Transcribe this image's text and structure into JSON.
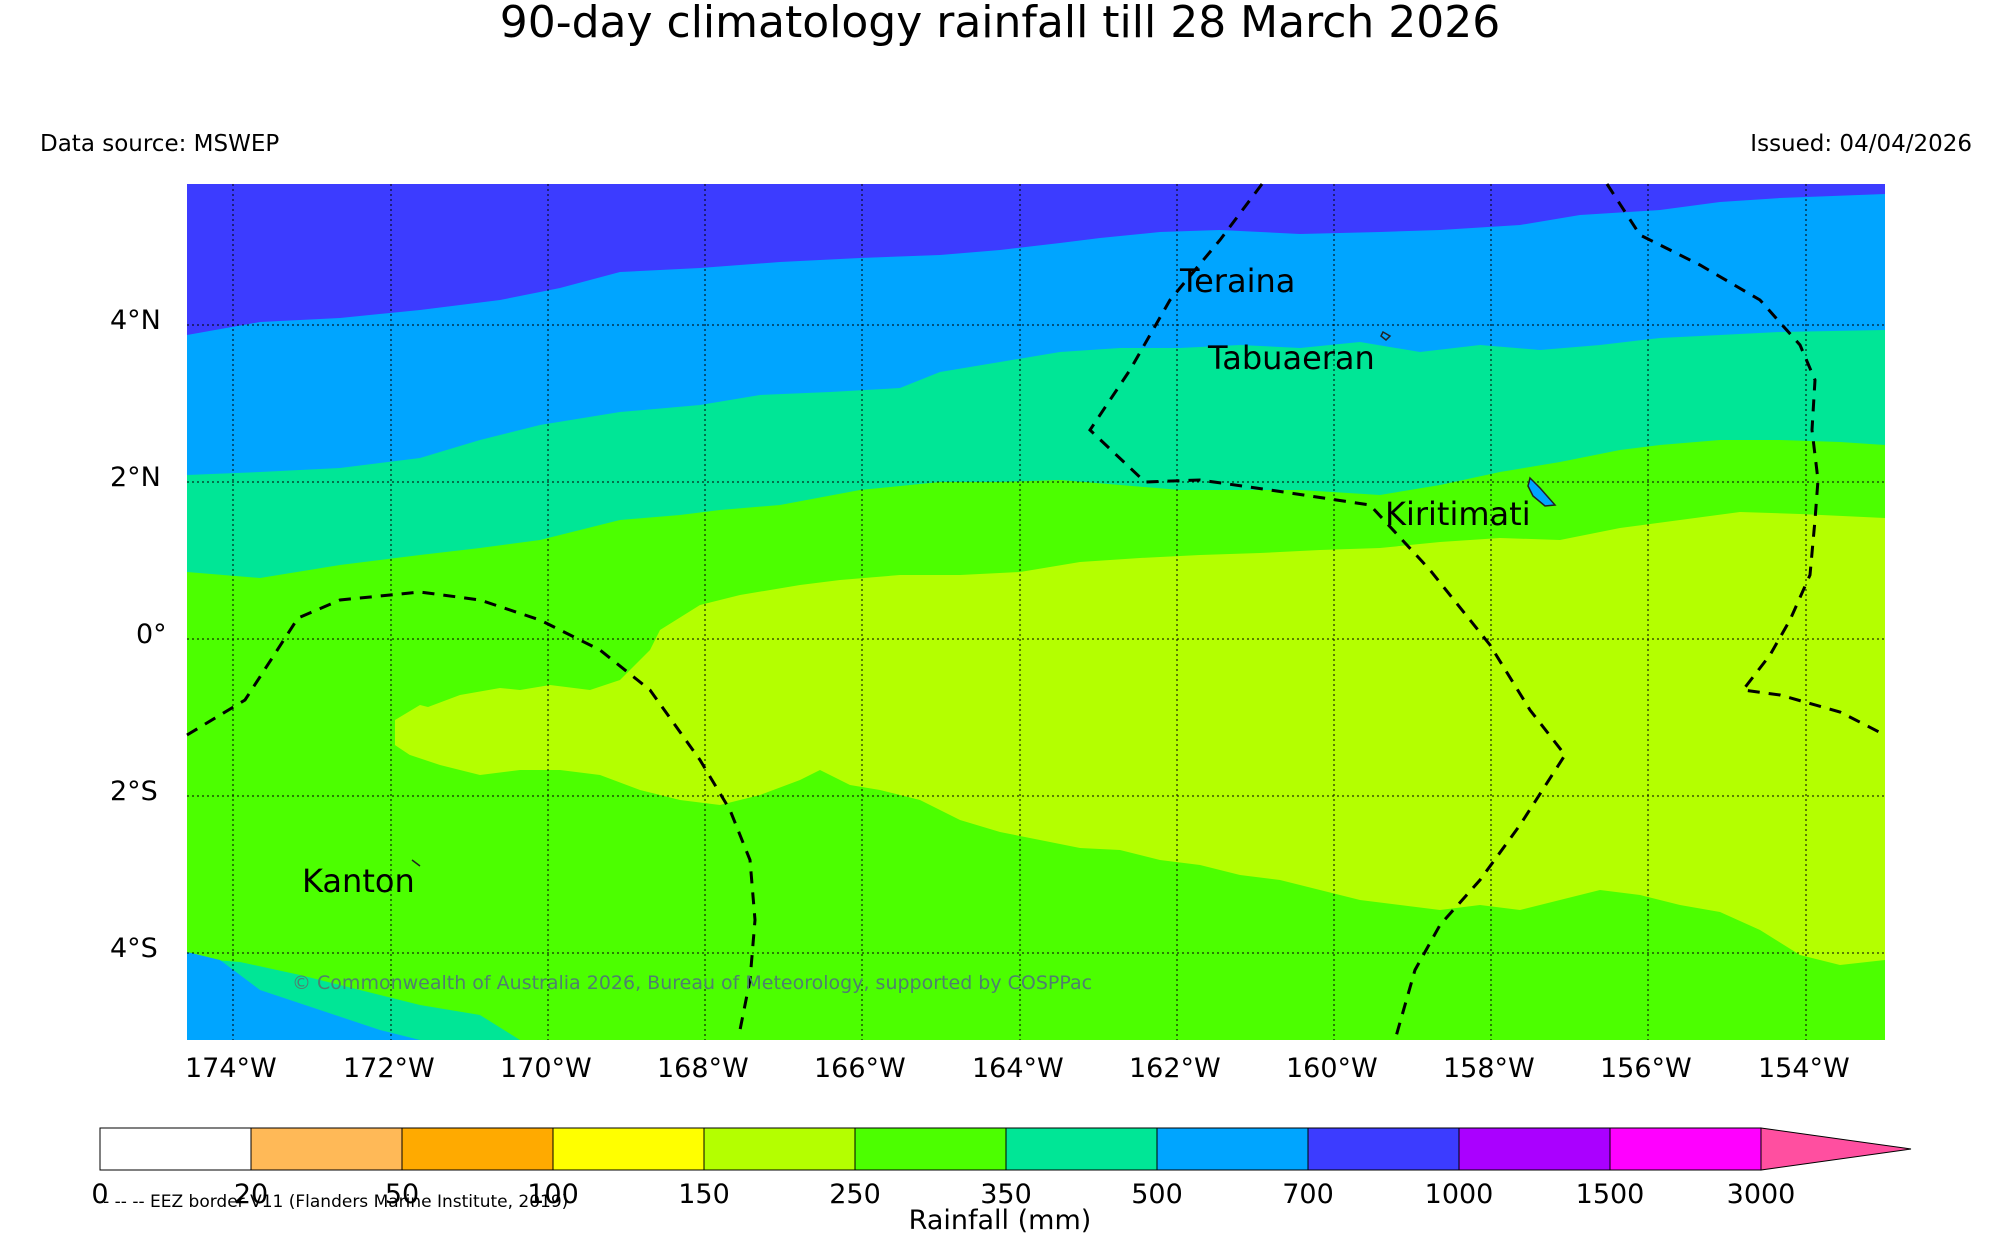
{
  "title": "90-day climatology rainfall till 28 March 2026",
  "data_source": "Data source: MSWEP",
  "issued": "Issued: 04/04/2026",
  "lat_labels": [
    "4°N",
    "2°N",
    "0°",
    "2°S",
    "4°S"
  ],
  "lon_labels": [
    "174°W",
    "172°W",
    "170°W",
    "168°W",
    "166°W",
    "164°W",
    "162°W",
    "160°W",
    "158°W",
    "156°W",
    "154°W"
  ],
  "places": {
    "teraina": "Teraina",
    "tabuaeran": "Tabuaeran",
    "kiritimati": "Kiritimati",
    "kanton": "Kanton"
  },
  "copyright": "© Commonwealth of Australia 2026, Bureau of Meteorology, supported by COSPPac",
  "eez_legend": "-- -- -- EEZ border V11 (Flanders Marine Institute, 2019)",
  "colorbar": {
    "title": "Rainfall (mm)",
    "ticks": [
      "0",
      "20",
      "50",
      "100",
      "150",
      "250",
      "350",
      "500",
      "700",
      "1000",
      "1500",
      "3000"
    ],
    "colors": [
      "#ffffff",
      "#ffb957",
      "#ffaa00",
      "#ffff00",
      "#b4ff00",
      "#4cff00",
      "#00e696",
      "#00a5ff",
      "#3c3cff",
      "#aa00ff",
      "#ff00ff",
      "#ff4fa0"
    ]
  },
  "band_colors": {
    "band_1000": "#3c3cff",
    "band_700": "#00a5ff",
    "band_500": "#00e696",
    "band_350": "#4cff00",
    "band_250": "#b4ff00"
  }
}
